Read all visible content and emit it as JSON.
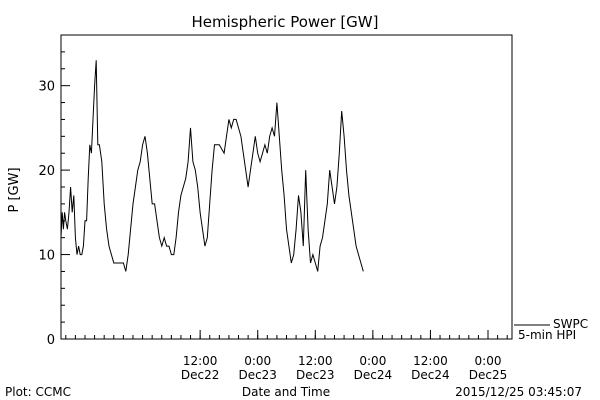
{
  "chart_data": {
    "type": "line",
    "title": "Hemispheric Power [GW]",
    "ylabel": "P [GW]",
    "xlabel": "Date and Time",
    "ylim": [
      0,
      36
    ],
    "xlim": [
      "2015-12-21T07:00",
      "2015-12-25T05:00"
    ],
    "yticks": [
      0,
      10,
      20,
      30
    ],
    "xticks": [
      {
        "x": "2015-12-22T12:00",
        "time": "12:00",
        "date": "Dec22"
      },
      {
        "x": "2015-12-23T00:00",
        "time": "0:00",
        "date": "Dec23"
      },
      {
        "x": "2015-12-23T12:00",
        "time": "12:00",
        "date": "Dec23"
      },
      {
        "x": "2015-12-24T00:00",
        "time": "0:00",
        "date": "Dec24"
      },
      {
        "x": "2015-12-24T12:00",
        "time": "12:00",
        "date": "Dec24"
      },
      {
        "x": "2015-12-25T00:00",
        "time": "0:00",
        "date": "Dec25"
      }
    ],
    "grid": false,
    "legend": {
      "placement": "bottom-right",
      "lines": [
        "SWPC",
        "5-min HPI"
      ]
    },
    "series": [
      {
        "name": "SWPC 5-min HPI",
        "color": "#000000",
        "points": [
          [
            "2015-12-21T07:00",
            12
          ],
          [
            "2015-12-21T07:15",
            15
          ],
          [
            "2015-12-21T07:30",
            13
          ],
          [
            "2015-12-21T07:45",
            15
          ],
          [
            "2015-12-21T08:00",
            14
          ],
          [
            "2015-12-21T08:20",
            13
          ],
          [
            "2015-12-21T08:40",
            15
          ],
          [
            "2015-12-21T09:00",
            18
          ],
          [
            "2015-12-21T09:20",
            15
          ],
          [
            "2015-12-21T09:40",
            17
          ],
          [
            "2015-12-21T10:00",
            12
          ],
          [
            "2015-12-21T10:20",
            10
          ],
          [
            "2015-12-21T10:40",
            11
          ],
          [
            "2015-12-21T11:00",
            10
          ],
          [
            "2015-12-21T11:20",
            10
          ],
          [
            "2015-12-21T11:40",
            11
          ],
          [
            "2015-12-21T12:00",
            14
          ],
          [
            "2015-12-21T12:20",
            14
          ],
          [
            "2015-12-21T12:40",
            19
          ],
          [
            "2015-12-21T13:00",
            23
          ],
          [
            "2015-12-21T13:20",
            22
          ],
          [
            "2015-12-21T13:40",
            26
          ],
          [
            "2015-12-21T14:00",
            30
          ],
          [
            "2015-12-21T14:20",
            33
          ],
          [
            "2015-12-21T14:40",
            23
          ],
          [
            "2015-12-21T15:00",
            23
          ],
          [
            "2015-12-21T15:30",
            21
          ],
          [
            "2015-12-21T16:00",
            16
          ],
          [
            "2015-12-21T16:30",
            13
          ],
          [
            "2015-12-21T17:00",
            11
          ],
          [
            "2015-12-21T17:30",
            10
          ],
          [
            "2015-12-21T18:00",
            9
          ],
          [
            "2015-12-21T19:00",
            9
          ],
          [
            "2015-12-21T20:00",
            9
          ],
          [
            "2015-12-21T20:30",
            8
          ],
          [
            "2015-12-21T21:00",
            10
          ],
          [
            "2015-12-21T21:30",
            13
          ],
          [
            "2015-12-21T22:00",
            16
          ],
          [
            "2015-12-21T22:30",
            18
          ],
          [
            "2015-12-21T23:00",
            20
          ],
          [
            "2015-12-21T23:30",
            21
          ],
          [
            "2015-12-22T00:00",
            23
          ],
          [
            "2015-12-22T00:30",
            24
          ],
          [
            "2015-12-22T01:00",
            22
          ],
          [
            "2015-12-22T01:30",
            19
          ],
          [
            "2015-12-22T02:00",
            16
          ],
          [
            "2015-12-22T02:30",
            16
          ],
          [
            "2015-12-22T03:00",
            14
          ],
          [
            "2015-12-22T03:30",
            12
          ],
          [
            "2015-12-22T04:00",
            11
          ],
          [
            "2015-12-22T04:30",
            12
          ],
          [
            "2015-12-22T05:00",
            11
          ],
          [
            "2015-12-22T05:30",
            11
          ],
          [
            "2015-12-22T06:00",
            10
          ],
          [
            "2015-12-22T06:30",
            10
          ],
          [
            "2015-12-22T07:00",
            12
          ],
          [
            "2015-12-22T07:30",
            15
          ],
          [
            "2015-12-22T08:00",
            17
          ],
          [
            "2015-12-22T08:30",
            18
          ],
          [
            "2015-12-22T09:00",
            19
          ],
          [
            "2015-12-22T09:30",
            21
          ],
          [
            "2015-12-22T10:00",
            25
          ],
          [
            "2015-12-22T10:30",
            21
          ],
          [
            "2015-12-22T11:00",
            20
          ],
          [
            "2015-12-22T11:30",
            18
          ],
          [
            "2015-12-22T12:00",
            15
          ],
          [
            "2015-12-22T12:30",
            13
          ],
          [
            "2015-12-22T13:00",
            11
          ],
          [
            "2015-12-22T13:30",
            12
          ],
          [
            "2015-12-22T14:00",
            16
          ],
          [
            "2015-12-22T14:30",
            20
          ],
          [
            "2015-12-22T15:00",
            23
          ],
          [
            "2015-12-22T16:00",
            23
          ],
          [
            "2015-12-22T17:00",
            22
          ],
          [
            "2015-12-22T17:30",
            24
          ],
          [
            "2015-12-22T18:00",
            26
          ],
          [
            "2015-12-22T18:30",
            25
          ],
          [
            "2015-12-22T19:00",
            26
          ],
          [
            "2015-12-22T19:30",
            26
          ],
          [
            "2015-12-22T20:00",
            25
          ],
          [
            "2015-12-22T20:30",
            24
          ],
          [
            "2015-12-22T21:00",
            22
          ],
          [
            "2015-12-22T21:30",
            20
          ],
          [
            "2015-12-22T22:00",
            18
          ],
          [
            "2015-12-22T22:30",
            20
          ],
          [
            "2015-12-22T23:00",
            22
          ],
          [
            "2015-12-22T23:30",
            24
          ],
          [
            "2015-12-23T00:00",
            22
          ],
          [
            "2015-12-23T00:30",
            21
          ],
          [
            "2015-12-23T01:00",
            22
          ],
          [
            "2015-12-23T01:30",
            23
          ],
          [
            "2015-12-23T02:00",
            22
          ],
          [
            "2015-12-23T02:30",
            24
          ],
          [
            "2015-12-23T03:00",
            25
          ],
          [
            "2015-12-23T03:30",
            24
          ],
          [
            "2015-12-23T04:00",
            28
          ],
          [
            "2015-12-23T04:30",
            24
          ],
          [
            "2015-12-23T05:00",
            20
          ],
          [
            "2015-12-23T05:30",
            17
          ],
          [
            "2015-12-23T06:00",
            13
          ],
          [
            "2015-12-23T06:30",
            11
          ],
          [
            "2015-12-23T07:00",
            9
          ],
          [
            "2015-12-23T07:30",
            10
          ],
          [
            "2015-12-23T08:00",
            13
          ],
          [
            "2015-12-23T08:30",
            17
          ],
          [
            "2015-12-23T09:00",
            15
          ],
          [
            "2015-12-23T09:30",
            11
          ],
          [
            "2015-12-23T10:00",
            20
          ],
          [
            "2015-12-23T10:30",
            13
          ],
          [
            "2015-12-23T11:00",
            9
          ],
          [
            "2015-12-23T11:30",
            10
          ],
          [
            "2015-12-23T12:00",
            9
          ],
          [
            "2015-12-23T12:30",
            8
          ],
          [
            "2015-12-23T13:00",
            11
          ],
          [
            "2015-12-23T13:30",
            12
          ],
          [
            "2015-12-23T14:00",
            14
          ],
          [
            "2015-12-23T14:30",
            16
          ],
          [
            "2015-12-23T15:00",
            20
          ],
          [
            "2015-12-23T15:30",
            18
          ],
          [
            "2015-12-23T16:00",
            16
          ],
          [
            "2015-12-23T16:30",
            18
          ],
          [
            "2015-12-23T17:00",
            22
          ],
          [
            "2015-12-23T17:30",
            27
          ],
          [
            "2015-12-23T18:00",
            24
          ],
          [
            "2015-12-23T18:30",
            20
          ],
          [
            "2015-12-23T19:00",
            17
          ],
          [
            "2015-12-23T19:30",
            15
          ],
          [
            "2015-12-23T20:00",
            13
          ],
          [
            "2015-12-23T20:30",
            11
          ],
          [
            "2015-12-23T21:00",
            10
          ],
          [
            "2015-12-23T21:30",
            9
          ],
          [
            "2015-12-23T22:00",
            8
          ]
        ]
      }
    ]
  },
  "footer": {
    "left": "Plot: CCMC",
    "center": "Date and Time",
    "right": "2015/12/25 03:45:07"
  }
}
